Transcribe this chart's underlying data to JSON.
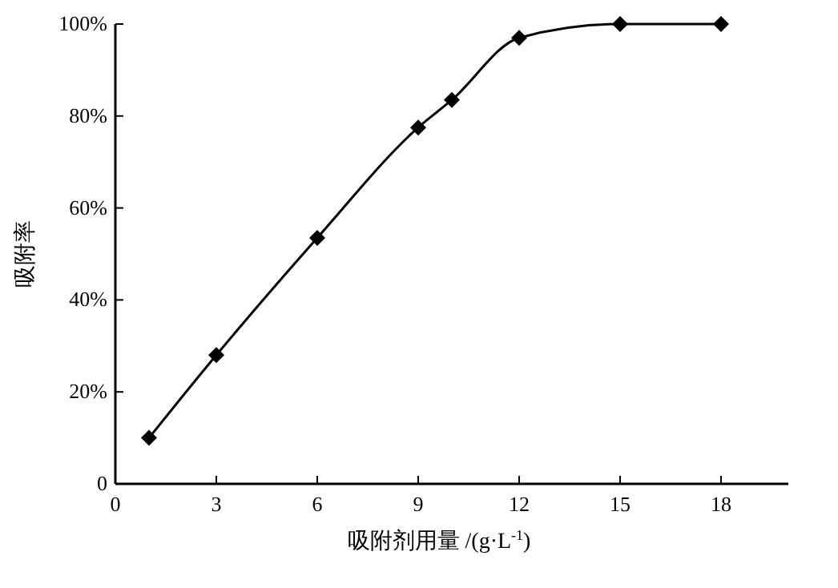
{
  "chart_data": {
    "type": "line",
    "xlabel": "吸附剂用量 /(g·L$^{-1}$)",
    "ylabel": "吸附率",
    "x": [
      1,
      3,
      6,
      9,
      10,
      12,
      15,
      18
    ],
    "series": [
      {
        "color": "#000000",
        "values": [
          10,
          28,
          53.5,
          77.5,
          83.5,
          97,
          100,
          100
        ]
      }
    ],
    "xlim": [
      0,
      20
    ],
    "xticks": [
      0,
      3,
      6,
      9,
      12,
      15,
      18
    ],
    "ylim": [
      0,
      100
    ],
    "yticks": [
      {
        "value": 0,
        "label": "0"
      },
      {
        "value": 20,
        "label": "20%"
      },
      {
        "value": 40,
        "label": "40%"
      },
      {
        "value": 60,
        "label": "60%"
      },
      {
        "value": 80,
        "label": "80%"
      },
      {
        "value": 100,
        "label": "100%"
      }
    ],
    "marker": "diamond",
    "line_style": "solid"
  }
}
